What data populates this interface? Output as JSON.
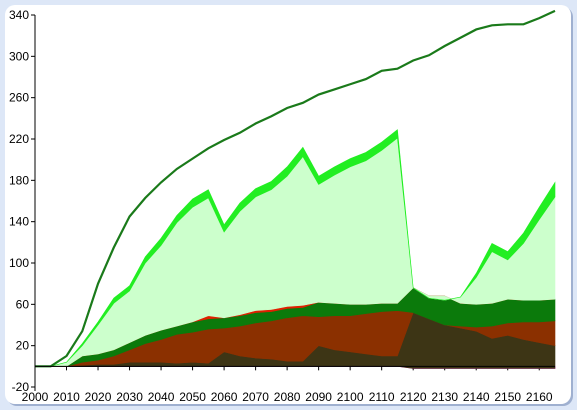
{
  "chart_data": {
    "type": "area",
    "title": "",
    "xlabel": "",
    "ylabel": "",
    "ylim": [
      -20,
      340
    ],
    "yticks": [
      -20,
      20,
      60,
      100,
      140,
      180,
      220,
      260,
      300,
      340
    ],
    "xticks": [
      2000,
      2010,
      2020,
      2030,
      2040,
      2050,
      2060,
      2070,
      2080,
      2090,
      2100,
      2110,
      2120,
      2130,
      2140,
      2150,
      2160
    ],
    "x": [
      2000,
      2005,
      2010,
      2015,
      2020,
      2025,
      2030,
      2035,
      2040,
      2045,
      2050,
      2055,
      2060,
      2065,
      2070,
      2075,
      2080,
      2085,
      2090,
      2095,
      2100,
      2105,
      2110,
      2115,
      2120,
      2125,
      2130,
      2135,
      2140,
      2145,
      2150,
      2155,
      2160,
      2165
    ],
    "series": [
      {
        "color": "#ff00ff",
        "values": [
          0,
          0,
          0,
          0,
          0,
          0,
          0,
          0,
          0,
          0,
          0,
          0,
          0,
          0,
          0,
          0,
          0,
          0,
          0,
          0,
          0,
          0,
          0,
          0,
          -2,
          -2,
          -2,
          -2,
          -2,
          -2,
          -2,
          -2,
          -2,
          -2
        ]
      },
      {
        "color": "#3d3515",
        "values": [
          0,
          0,
          0,
          1,
          2,
          2,
          4,
          4,
          4,
          3,
          4,
          3,
          14,
          10,
          8,
          7,
          5,
          5,
          20,
          16,
          14,
          12,
          10,
          10,
          54,
          48,
          42,
          39,
          36,
          29,
          32,
          28,
          25,
          22
        ]
      },
      {
        "color": "#8b3000",
        "values": [
          0,
          0,
          0,
          3,
          4,
          8,
          12,
          18,
          22,
          28,
          29,
          33,
          23,
          29,
          34,
          37,
          42,
          44,
          28,
          33,
          35,
          39,
          43,
          44,
          0,
          0,
          0,
          2,
          4,
          12,
          12,
          17,
          20,
          24
        ]
      },
      {
        "color": "#0b7a0b",
        "values": [
          0,
          0,
          0,
          6,
          6,
          6,
          7,
          8,
          9,
          8,
          10,
          10,
          10,
          10,
          10,
          9,
          9,
          8,
          14,
          12,
          11,
          9,
          8,
          7,
          24,
          22,
          28,
          22,
          22,
          22,
          23,
          21,
          21,
          21
        ]
      },
      {
        "color": "#e02000",
        "values": [
          0,
          0,
          0,
          0,
          0,
          0,
          0,
          0,
          0,
          0,
          0,
          3,
          0,
          1,
          2,
          2,
          2,
          2,
          0,
          0,
          0,
          0,
          0,
          0,
          0,
          0,
          0,
          0,
          0,
          0,
          0,
          0,
          0,
          0
        ]
      },
      {
        "color": "#ccffcc",
        "values": [
          0,
          0,
          4,
          10,
          28,
          45,
          50,
          70,
          82,
          100,
          111,
          114,
          83,
          100,
          110,
          116,
          126,
          144,
          114,
          124,
          133,
          139,
          148,
          160,
          0,
          -2,
          -4,
          6,
          26,
          50,
          38,
          55,
          78,
          99
        ]
      },
      {
        "color": "#22ee22",
        "values": [
          0,
          0,
          0,
          2,
          3,
          5,
          5,
          6,
          7,
          7,
          8,
          8,
          7,
          8,
          8,
          8,
          9,
          9,
          8,
          8,
          8,
          8,
          8,
          8,
          0,
          0,
          0,
          0,
          4,
          8,
          8,
          10,
          12,
          14
        ]
      },
      {
        "color": "#1a7a1a",
        "line_only": true,
        "values": [
          0,
          0,
          10,
          34,
          80,
          115,
          145,
          163,
          178,
          191,
          201,
          211,
          219,
          226,
          235,
          242,
          250,
          255,
          263,
          268,
          273,
          278,
          286,
          288,
          296,
          301,
          310,
          318,
          326,
          330,
          331,
          331,
          337,
          344
        ]
      }
    ]
  }
}
